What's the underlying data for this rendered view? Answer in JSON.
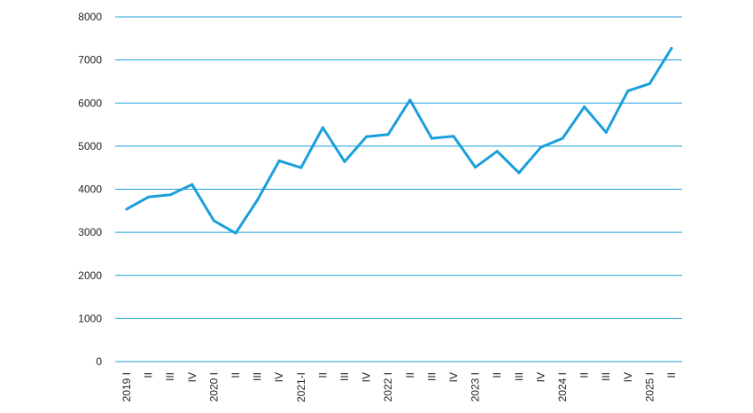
{
  "chart_data": {
    "type": "line",
    "title": "",
    "xlabel": "",
    "ylabel": "",
    "ylim": [
      0,
      8000
    ],
    "yticks": [
      0,
      1000,
      2000,
      3000,
      4000,
      5000,
      6000,
      7000,
      8000
    ],
    "grid": true,
    "legend": "none",
    "categories": [
      "2019 I",
      "II",
      "III",
      "IV",
      "2020 I",
      "II",
      "III",
      "IV",
      "2021-I",
      "II",
      "III",
      "IV",
      "2022 I",
      "II",
      "III",
      "IV",
      "2023 I",
      "II",
      "III",
      "IV",
      "2024 I",
      "II",
      "III",
      "IV",
      "2025 I",
      "II"
    ],
    "series": [
      {
        "color": "#1a9fdb",
        "values": [
          3540,
          3820,
          3870,
          4110,
          3270,
          2980,
          3750,
          4660,
          4500,
          5430,
          4640,
          5220,
          5270,
          6070,
          5180,
          5230,
          4510,
          4880,
          4380,
          4970,
          5180,
          5910,
          5320,
          6280,
          6450,
          7270
        ]
      }
    ],
    "colors": {
      "grid": "#1a9fdb",
      "line": "#1a9fdb",
      "text": "#222222"
    }
  }
}
